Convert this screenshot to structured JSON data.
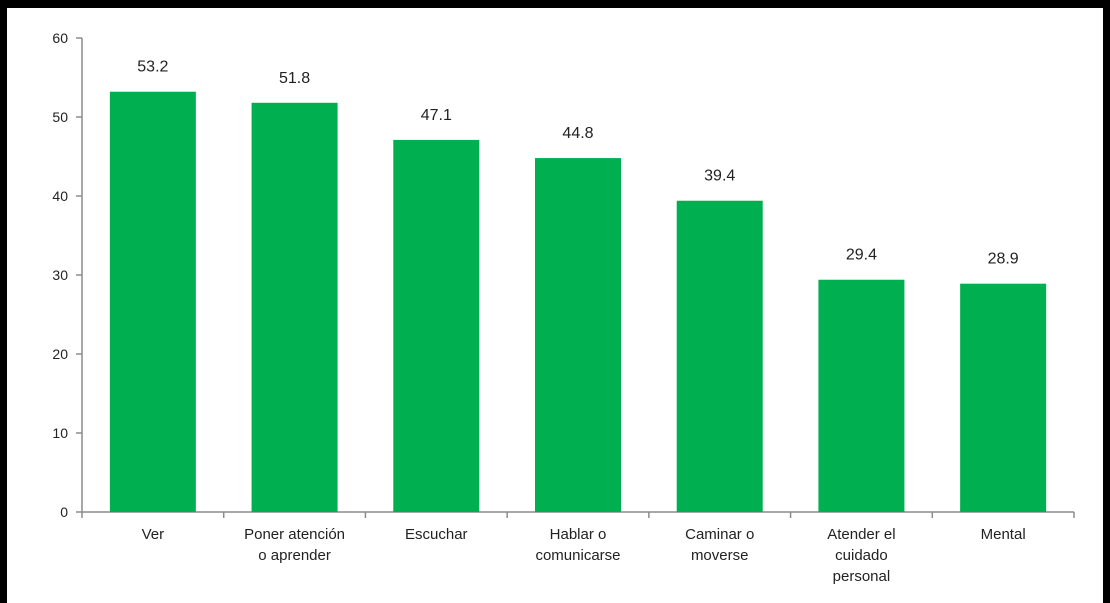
{
  "chart_data": {
    "type": "bar",
    "categories": [
      [
        "Ver"
      ],
      [
        "Poner atención",
        "o aprender"
      ],
      [
        "Escuchar"
      ],
      [
        "Hablar o",
        "comunicarse"
      ],
      [
        "Caminar o",
        "moverse"
      ],
      [
        "Atender el",
        "cuidado",
        "personal"
      ],
      [
        "Mental"
      ]
    ],
    "values": [
      53.2,
      51.8,
      47.1,
      44.8,
      39.4,
      29.4,
      28.9
    ],
    "value_labels": [
      "53.2",
      "51.8",
      "47.1",
      "44.8",
      "39.4",
      "29.4",
      "28.9"
    ],
    "y_ticks": [
      0,
      10,
      20,
      30,
      40,
      50,
      60
    ],
    "y_tick_labels": [
      "0",
      "10",
      "20",
      "30",
      "40",
      "50",
      "60"
    ],
    "ylim": [
      0,
      60
    ],
    "grid": false,
    "legend": "none",
    "title": "",
    "xlabel": "",
    "ylabel": "",
    "bar_color": "#00B050",
    "axis_color": "#8c8c8c",
    "frame_color": "#000000"
  }
}
